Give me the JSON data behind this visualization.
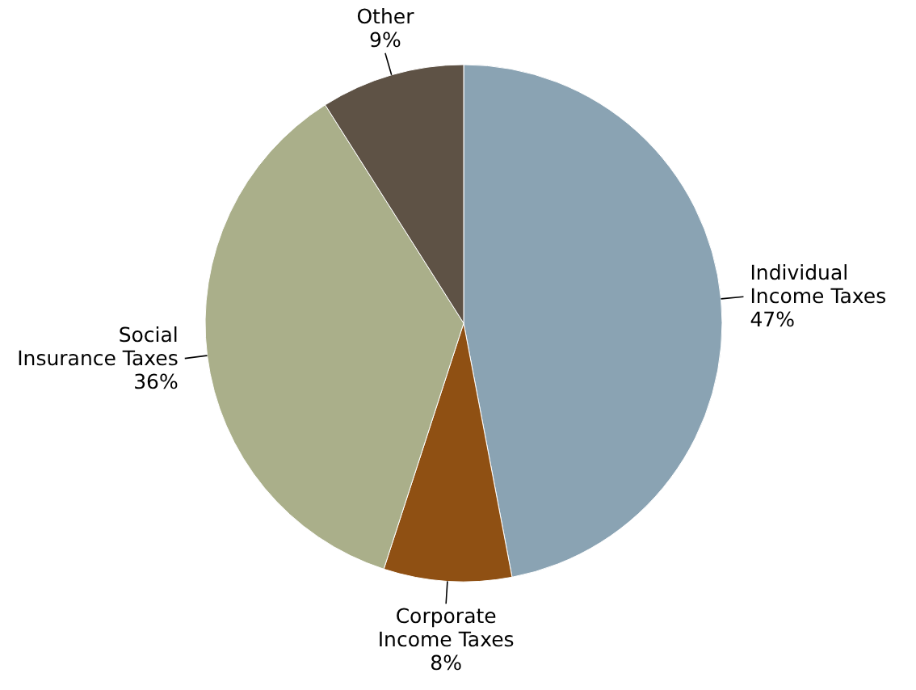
{
  "chart_data": {
    "type": "pie",
    "categories": [
      "Individual Income Taxes",
      "Corporate Income Taxes",
      "Social Insurance Taxes",
      "Other"
    ],
    "values": [
      47,
      8,
      36,
      9
    ],
    "value_labels": [
      "47%",
      "8%",
      "36%",
      "9%"
    ],
    "colors": [
      "#8aa3b3",
      "#8f5013",
      "#aaaf8a",
      "#5e5245"
    ]
  }
}
